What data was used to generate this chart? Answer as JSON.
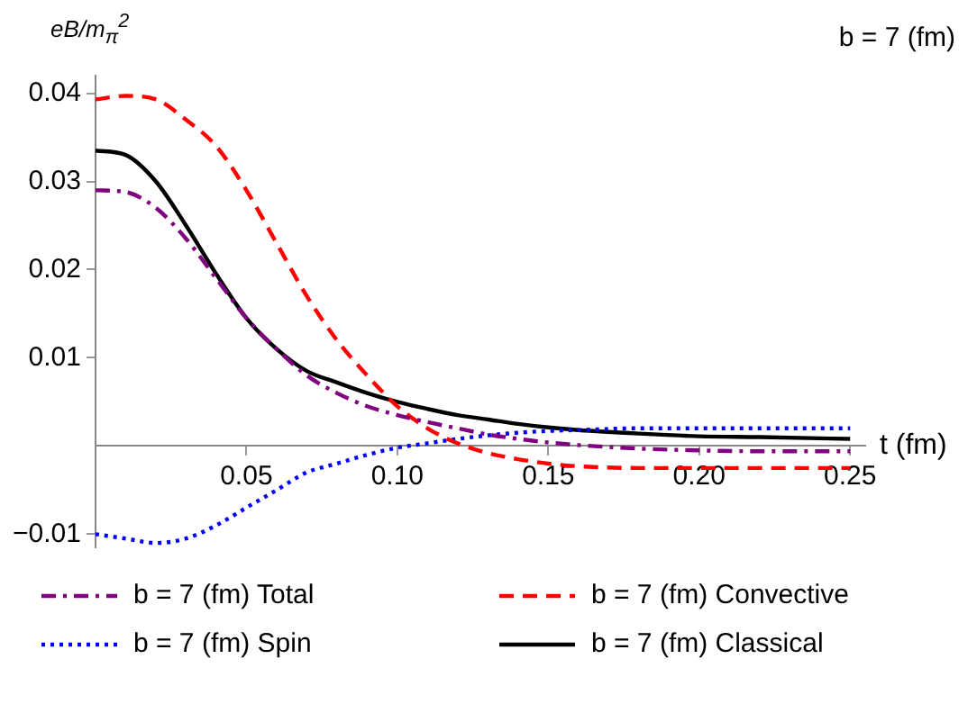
{
  "chart_data": {
    "type": "line",
    "ylabel": "eB/m$_{π}$$^{2}$",
    "xlabel": "t (fm)",
    "annotations": [
      "b = 7 (fm)"
    ],
    "xlim": [
      0,
      0.255
    ],
    "ylim": [
      -0.0115,
      0.042
    ],
    "xticks": [
      0.05,
      {
        "value": 0.1,
        "label": "0.10"
      },
      0.15,
      {
        "value": 0.2,
        "label": "0.20"
      },
      0.25
    ],
    "yticks": [
      -0.01,
      0.01,
      0.02,
      0.03,
      0.04
    ],
    "grid": false,
    "legend": "bottom",
    "marker": "none",
    "x": [
      0,
      0.01,
      0.02,
      0.03,
      0.04,
      0.05,
      0.06,
      0.07,
      0.08,
      0.09,
      0.1,
      0.11,
      0.12,
      0.13,
      0.14,
      0.15,
      0.16,
      0.18,
      0.2,
      0.22,
      0.25
    ],
    "series": [
      {
        "name": "b = 7 (fm) Total",
        "color": "#800080",
        "line_style": "dashdot",
        "values": [
          0.029,
          0.0288,
          0.027,
          0.0235,
          0.019,
          0.0145,
          0.011,
          0.008,
          0.006,
          0.0045,
          0.0035,
          0.0027,
          0.002,
          0.0013,
          0.0008,
          0.0004,
          0.0001,
          -0.0003,
          -0.0005,
          -0.0006,
          -0.0006
        ]
      },
      {
        "name": "b = 7 (fm) Convective",
        "color": "#ff0000",
        "line_style": "dashed",
        "values": [
          0.0393,
          0.0397,
          0.0393,
          0.037,
          0.034,
          0.029,
          0.023,
          0.017,
          0.012,
          0.008,
          0.0045,
          0.002,
          0.0003,
          -0.0008,
          -0.0015,
          -0.002,
          -0.0023,
          -0.0025,
          -0.0025,
          -0.0025,
          -0.0025
        ]
      },
      {
        "name": "b = 7 (fm) Spin",
        "color": "#0000ff",
        "line_style": "dotted",
        "values": [
          -0.01,
          -0.0105,
          -0.011,
          -0.0105,
          -0.009,
          -0.007,
          -0.005,
          -0.003,
          -0.002,
          -0.001,
          -0.0002,
          0.0003,
          0.0008,
          0.0012,
          0.0015,
          0.0017,
          0.0018,
          0.002,
          0.002,
          0.002,
          0.002
        ]
      },
      {
        "name": "b = 7 (fm) Classical",
        "color": "#000000",
        "line_style": "solid",
        "values": [
          0.0335,
          0.033,
          0.03,
          0.025,
          0.0195,
          0.0145,
          0.011,
          0.0085,
          0.0072,
          0.006,
          0.005,
          0.0042,
          0.0035,
          0.003,
          0.0025,
          0.0021,
          0.0018,
          0.0014,
          0.0011,
          0.001,
          0.0008
        ]
      }
    ]
  }
}
